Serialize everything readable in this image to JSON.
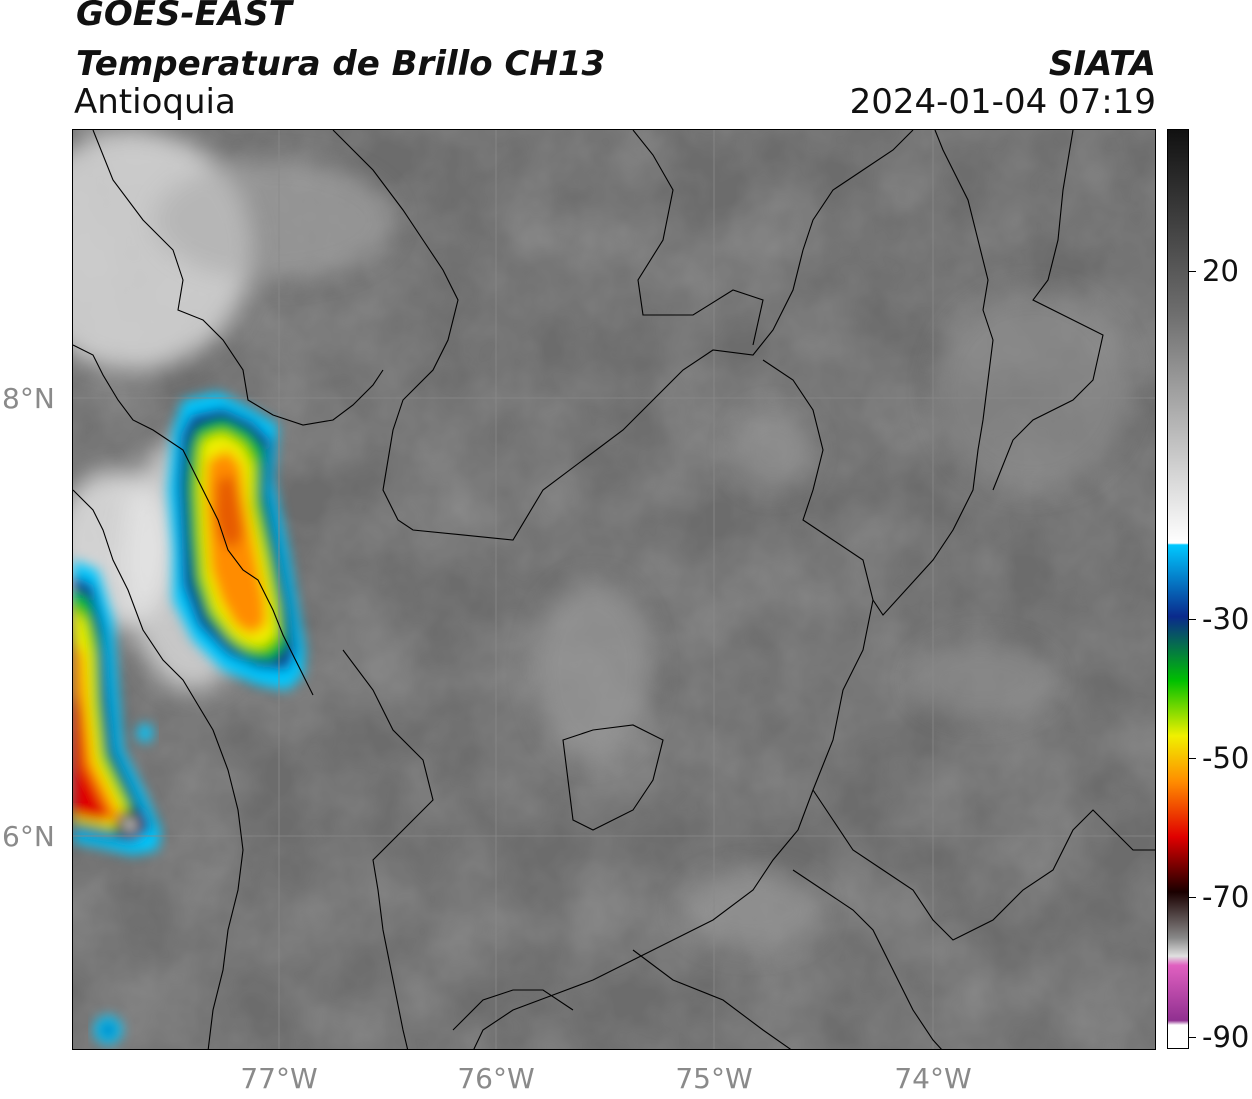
{
  "header": {
    "title": "GOES-EAST",
    "subtitle": "Temperatura de Brillo CH13",
    "region": "Antioquia",
    "organization": "SIATA",
    "timestamp": "2024-01-04 07:19"
  },
  "map": {
    "lat_labels": [
      "8°N",
      "6°N"
    ],
    "lon_labels": [
      "77°W",
      "76°W",
      "75°W",
      "74°W"
    ]
  },
  "colorbar": {
    "tick_labels": [
      "20",
      "-30",
      "-50",
      "-70",
      "-90"
    ],
    "colors": {
      "warm_gray": "#6e6e6e",
      "light_gray": "#d8d8d8",
      "cyan": "#00c8ff",
      "blue": "#0a2a8c",
      "green": "#00c000",
      "yellow": "#f0f000",
      "orange": "#ff8c00",
      "red": "#e00000",
      "dark": "#1a0000",
      "pink": "#e060c0",
      "purple": "#903090"
    }
  }
}
